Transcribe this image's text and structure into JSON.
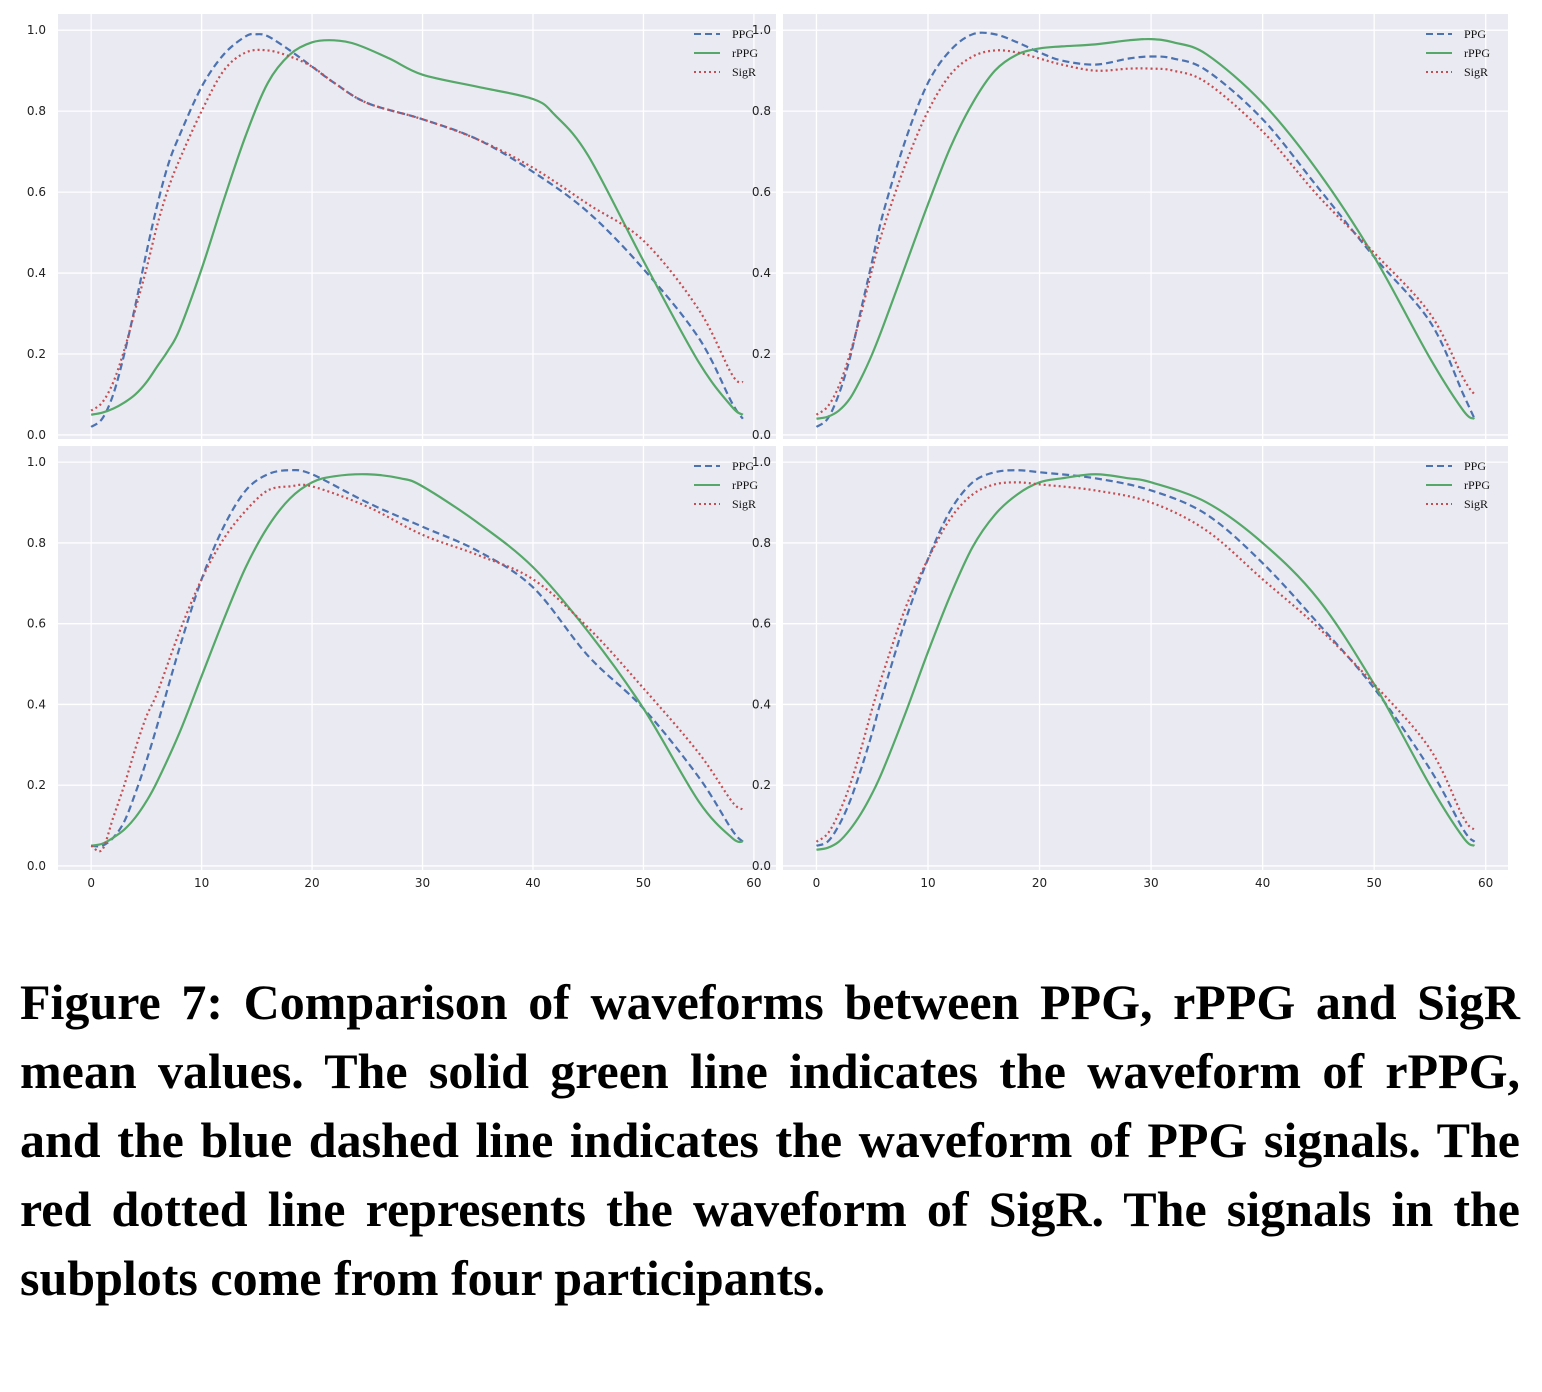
{
  "caption": "Figure 7: Comparison of waveforms between PPG, rPPG and SigR mean values. The solid green line indicates the wave­form of rPPG, and the blue dashed line indicates the wave­form of PPG signals. The red dotted line represents the wave­form of SigR. The signals in the subplots come from four participants.",
  "colors": {
    "PPG": "#4c72b0",
    "rPPG": "#55a868",
    "SigR": "#c44e52",
    "panel_background": "#eaeaf2",
    "grid": "#ffffff"
  },
  "chart_data": [
    {
      "type": "line",
      "panel": "top-left",
      "xlim": [
        -3,
        62
      ],
      "ylim": [
        -0.01,
        1.04
      ],
      "xticks": [
        0,
        10,
        20,
        30,
        40,
        50,
        60
      ],
      "yticks": [
        "0.0",
        "0.2",
        "0.4",
        "0.6",
        "0.8",
        "1.0"
      ],
      "grid": true,
      "legend": "top-right",
      "series": [
        {
          "name": "PPG",
          "style": "dashed",
          "x": [
            0,
            1,
            2,
            3,
            4,
            5,
            6,
            7,
            8,
            10,
            12,
            14,
            15,
            16,
            18,
            20,
            22,
            25,
            30,
            35,
            40,
            45,
            50,
            55,
            58,
            59
          ],
          "y": [
            0.02,
            0.04,
            0.1,
            0.2,
            0.32,
            0.45,
            0.57,
            0.67,
            0.74,
            0.86,
            0.94,
            0.985,
            0.99,
            0.985,
            0.95,
            0.91,
            0.87,
            0.82,
            0.78,
            0.73,
            0.65,
            0.55,
            0.41,
            0.24,
            0.08,
            0.04
          ]
        },
        {
          "name": "rPPG",
          "style": "solid",
          "x": [
            0,
            1,
            2,
            3,
            4,
            5,
            6,
            7,
            8,
            10,
            12,
            14,
            16,
            18,
            20,
            22,
            24,
            27,
            30,
            35,
            40,
            42,
            45,
            50,
            55,
            58,
            59
          ],
          "y": [
            0.05,
            0.055,
            0.065,
            0.08,
            0.1,
            0.13,
            0.17,
            0.21,
            0.26,
            0.41,
            0.58,
            0.74,
            0.87,
            0.94,
            0.97,
            0.975,
            0.965,
            0.93,
            0.89,
            0.86,
            0.83,
            0.79,
            0.69,
            0.43,
            0.18,
            0.07,
            0.05
          ]
        },
        {
          "name": "SigR",
          "style": "dotted",
          "x": [
            0,
            1,
            2,
            3,
            4,
            5,
            6,
            7,
            8,
            10,
            12,
            14,
            16,
            18,
            20,
            22,
            25,
            30,
            35,
            40,
            45,
            50,
            55,
            58,
            59
          ],
          "y": [
            0.06,
            0.08,
            0.13,
            0.21,
            0.31,
            0.41,
            0.52,
            0.61,
            0.68,
            0.8,
            0.9,
            0.945,
            0.95,
            0.935,
            0.91,
            0.87,
            0.82,
            0.78,
            0.73,
            0.66,
            0.57,
            0.48,
            0.31,
            0.15,
            0.13
          ]
        }
      ]
    },
    {
      "type": "line",
      "panel": "top-right",
      "xlim": [
        -3,
        62
      ],
      "ylim": [
        -0.01,
        1.04
      ],
      "xticks": [
        0,
        10,
        20,
        30,
        40,
        50,
        60
      ],
      "yticks": [
        "0.0",
        "0.2",
        "0.4",
        "0.6",
        "0.8",
        "1.0"
      ],
      "grid": true,
      "legend": "top-right",
      "series": [
        {
          "name": "PPG",
          "style": "dashed",
          "x": [
            0,
            1,
            2,
            3,
            4,
            5,
            6,
            8,
            10,
            12,
            14,
            16,
            18,
            20,
            22,
            25,
            28,
            30,
            32,
            35,
            40,
            45,
            50,
            55,
            58,
            59
          ],
          "y": [
            0.02,
            0.04,
            0.1,
            0.19,
            0.31,
            0.43,
            0.55,
            0.73,
            0.87,
            0.95,
            0.99,
            0.99,
            0.97,
            0.945,
            0.925,
            0.915,
            0.93,
            0.935,
            0.93,
            0.9,
            0.78,
            0.61,
            0.44,
            0.28,
            0.1,
            0.04
          ]
        },
        {
          "name": "rPPG",
          "style": "solid",
          "x": [
            0,
            1,
            2,
            3,
            4,
            5,
            6,
            8,
            10,
            12,
            14,
            16,
            18,
            20,
            22,
            25,
            28,
            30,
            32,
            35,
            40,
            45,
            50,
            55,
            58,
            59
          ],
          "y": [
            0.04,
            0.045,
            0.06,
            0.09,
            0.14,
            0.2,
            0.27,
            0.42,
            0.57,
            0.71,
            0.82,
            0.9,
            0.94,
            0.955,
            0.96,
            0.965,
            0.975,
            0.978,
            0.97,
            0.94,
            0.82,
            0.65,
            0.44,
            0.19,
            0.06,
            0.04
          ]
        },
        {
          "name": "SigR",
          "style": "dotted",
          "x": [
            0,
            1,
            2,
            3,
            4,
            5,
            6,
            8,
            10,
            12,
            14,
            16,
            18,
            20,
            22,
            25,
            28,
            30,
            32,
            35,
            40,
            45,
            50,
            55,
            58,
            59
          ],
          "y": [
            0.05,
            0.07,
            0.12,
            0.2,
            0.3,
            0.41,
            0.51,
            0.67,
            0.8,
            0.89,
            0.935,
            0.95,
            0.945,
            0.93,
            0.915,
            0.9,
            0.905,
            0.905,
            0.9,
            0.87,
            0.75,
            0.59,
            0.45,
            0.3,
            0.14,
            0.1
          ]
        }
      ]
    },
    {
      "type": "line",
      "panel": "bottom-left",
      "xlim": [
        -3,
        62
      ],
      "ylim": [
        -0.01,
        1.04
      ],
      "xticks": [
        0,
        10,
        20,
        30,
        40,
        50,
        60
      ],
      "yticks": [
        "0.0",
        "0.2",
        "0.4",
        "0.6",
        "0.8",
        "1.0"
      ],
      "grid": true,
      "legend": "top-right",
      "series": [
        {
          "name": "PPG",
          "style": "dashed",
          "x": [
            0,
            1,
            2,
            3,
            4,
            5,
            6,
            8,
            10,
            12,
            14,
            16,
            18,
            20,
            25,
            30,
            35,
            40,
            45,
            50,
            55,
            58,
            59
          ],
          "y": [
            0.05,
            0.05,
            0.07,
            0.11,
            0.18,
            0.26,
            0.35,
            0.54,
            0.71,
            0.84,
            0.93,
            0.97,
            0.98,
            0.97,
            0.9,
            0.84,
            0.78,
            0.69,
            0.52,
            0.39,
            0.22,
            0.09,
            0.06
          ]
        },
        {
          "name": "rPPG",
          "style": "solid",
          "x": [
            0,
            1,
            2,
            3,
            4,
            5,
            6,
            8,
            10,
            12,
            14,
            16,
            18,
            20,
            22,
            25,
            28,
            30,
            35,
            40,
            45,
            50,
            55,
            58,
            59
          ],
          "y": [
            0.05,
            0.055,
            0.07,
            0.09,
            0.12,
            0.16,
            0.21,
            0.33,
            0.47,
            0.61,
            0.74,
            0.84,
            0.91,
            0.95,
            0.965,
            0.97,
            0.96,
            0.94,
            0.85,
            0.74,
            0.58,
            0.39,
            0.16,
            0.07,
            0.06
          ]
        },
        {
          "name": "SigR",
          "style": "dotted",
          "x": [
            0,
            1,
            2,
            3,
            4,
            5,
            6,
            8,
            10,
            12,
            14,
            16,
            18,
            20,
            25,
            30,
            35,
            40,
            45,
            50,
            55,
            58,
            59
          ],
          "y": [
            0.05,
            0.04,
            0.12,
            0.2,
            0.29,
            0.37,
            0.43,
            0.58,
            0.71,
            0.81,
            0.88,
            0.93,
            0.94,
            0.94,
            0.89,
            0.82,
            0.77,
            0.71,
            0.59,
            0.44,
            0.28,
            0.16,
            0.14
          ]
        }
      ]
    },
    {
      "type": "line",
      "panel": "bottom-right",
      "xlim": [
        -3,
        62
      ],
      "ylim": [
        -0.01,
        1.04
      ],
      "xticks": [
        0,
        10,
        20,
        30,
        40,
        50,
        60
      ],
      "yticks": [
        "0.0",
        "0.2",
        "0.4",
        "0.6",
        "0.8",
        "1.0"
      ],
      "grid": true,
      "legend": "top-right",
      "series": [
        {
          "name": "PPG",
          "style": "dashed",
          "x": [
            0,
            1,
            2,
            3,
            4,
            5,
            6,
            8,
            10,
            12,
            14,
            16,
            18,
            20,
            25,
            30,
            35,
            40,
            45,
            50,
            55,
            58,
            59
          ],
          "y": [
            0.05,
            0.06,
            0.1,
            0.16,
            0.24,
            0.33,
            0.43,
            0.61,
            0.76,
            0.88,
            0.95,
            0.975,
            0.98,
            0.975,
            0.96,
            0.93,
            0.87,
            0.75,
            0.6,
            0.44,
            0.24,
            0.09,
            0.06
          ]
        },
        {
          "name": "rPPG",
          "style": "solid",
          "x": [
            0,
            1,
            2,
            3,
            4,
            5,
            6,
            8,
            10,
            12,
            14,
            16,
            18,
            20,
            22,
            25,
            28,
            30,
            35,
            40,
            45,
            50,
            55,
            58,
            59
          ],
          "y": [
            0.04,
            0.045,
            0.06,
            0.09,
            0.13,
            0.18,
            0.24,
            0.38,
            0.53,
            0.67,
            0.79,
            0.87,
            0.92,
            0.95,
            0.96,
            0.97,
            0.96,
            0.95,
            0.9,
            0.8,
            0.66,
            0.45,
            0.2,
            0.07,
            0.05
          ]
        },
        {
          "name": "SigR",
          "style": "dotted",
          "x": [
            0,
            1,
            2,
            3,
            4,
            5,
            6,
            8,
            10,
            12,
            14,
            16,
            18,
            20,
            25,
            30,
            35,
            40,
            45,
            50,
            55,
            58,
            59
          ],
          "y": [
            0.06,
            0.08,
            0.13,
            0.2,
            0.29,
            0.39,
            0.48,
            0.64,
            0.76,
            0.86,
            0.92,
            0.945,
            0.95,
            0.945,
            0.93,
            0.9,
            0.83,
            0.71,
            0.59,
            0.45,
            0.29,
            0.12,
            0.09
          ]
        }
      ]
    }
  ]
}
